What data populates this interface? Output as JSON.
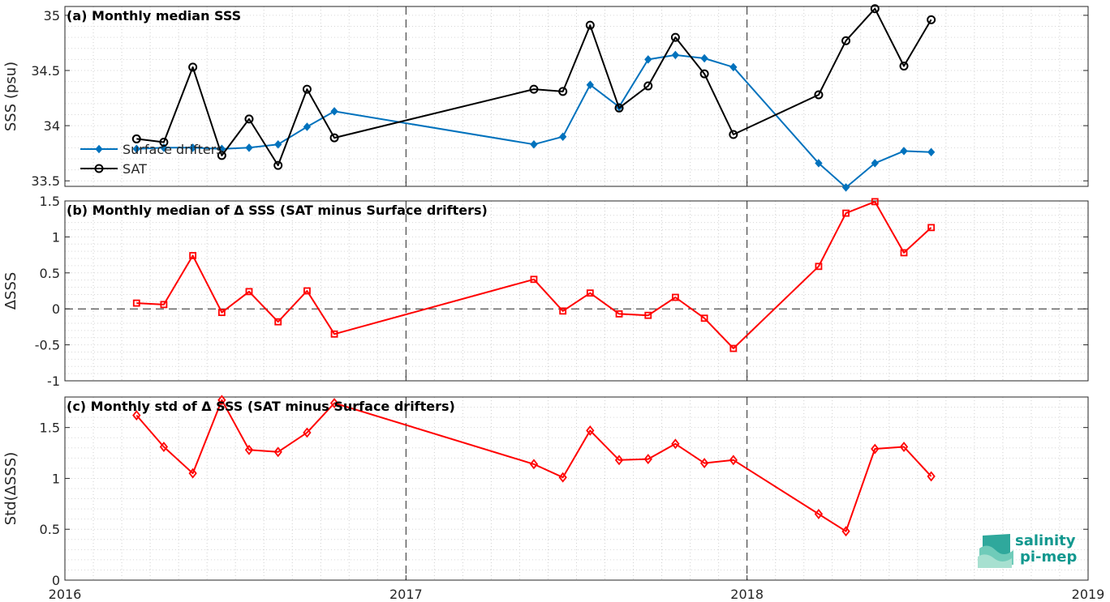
{
  "chart_data": [
    {
      "id": "a",
      "type": "line",
      "title": "(a) Monthly median SSS",
      "ylabel": "SSS (psu)",
      "xlim": [
        2016,
        2019
      ],
      "ylim": [
        33.45,
        35.08
      ],
      "yticks": [
        33.5,
        34,
        34.5,
        35
      ],
      "ytick_labels": [
        "33.5",
        "34",
        "34.5",
        "35"
      ],
      "legend": {
        "position": "left",
        "entries": [
          "Surface drifters",
          "SAT"
        ]
      },
      "series": [
        {
          "name": "Surface drifters",
          "color": "#0072bd",
          "marker": "filled-diamond",
          "x": [
            2016.21,
            2016.29,
            2016.375,
            2016.46,
            2016.54,
            2016.625,
            2016.71,
            2016.79,
            2017.375,
            2017.46,
            2017.54,
            2017.625,
            2017.71,
            2017.79,
            2017.875,
            2017.96,
            2018.21,
            2018.29,
            2018.375,
            2018.46,
            2018.54
          ],
          "values": [
            33.79,
            33.8,
            33.8,
            33.79,
            33.8,
            33.83,
            33.99,
            34.13,
            33.83,
            33.9,
            34.37,
            34.17,
            34.6,
            34.64,
            34.61,
            34.53,
            33.66,
            33.44,
            33.66,
            33.77,
            33.76
          ]
        },
        {
          "name": "SAT",
          "color": "#000000",
          "marker": "open-circle",
          "x": [
            2016.21,
            2016.29,
            2016.375,
            2016.46,
            2016.54,
            2016.625,
            2016.71,
            2016.79,
            2017.375,
            2017.46,
            2017.54,
            2017.625,
            2017.71,
            2017.79,
            2017.875,
            2017.96,
            2018.21,
            2018.29,
            2018.375,
            2018.46,
            2018.54
          ],
          "values": [
            33.88,
            33.85,
            34.53,
            33.73,
            34.06,
            33.64,
            34.33,
            33.89,
            34.33,
            34.31,
            34.91,
            34.16,
            34.36,
            34.8,
            34.47,
            33.92,
            34.28,
            34.77,
            35.06,
            34.54,
            34.96
          ]
        }
      ]
    },
    {
      "id": "b",
      "type": "line",
      "title": "(b) Monthly median of Δ SSS (SAT minus Surface drifters)",
      "ylabel": "ΔSSS",
      "xlim": [
        2016,
        2019
      ],
      "ylim": [
        -1,
        1.5
      ],
      "yticks": [
        -1,
        -0.5,
        0,
        0.5,
        1,
        1.5
      ],
      "ytick_labels": [
        "-1",
        "-0.5",
        "0",
        "0.5",
        "1",
        "1.5"
      ],
      "zero_line": true,
      "series": [
        {
          "color": "#ff0000",
          "marker": "open-square",
          "x": [
            2016.21,
            2016.29,
            2016.375,
            2016.46,
            2016.54,
            2016.625,
            2016.71,
            2016.79,
            2017.375,
            2017.46,
            2017.54,
            2017.625,
            2017.71,
            2017.79,
            2017.875,
            2017.96,
            2018.21,
            2018.29,
            2018.375,
            2018.46,
            2018.54
          ],
          "values": [
            0.08,
            0.06,
            0.74,
            -0.05,
            0.24,
            -0.18,
            0.25,
            -0.35,
            0.41,
            -0.03,
            0.22,
            -0.07,
            -0.09,
            0.16,
            -0.13,
            -0.55,
            0.59,
            1.33,
            1.49,
            0.78,
            1.13
          ]
        }
      ]
    },
    {
      "id": "c",
      "type": "line",
      "title": "(c) Monthly std of Δ SSS (SAT minus Surface drifters)",
      "ylabel": "Std(ΔSSS)",
      "xlim": [
        2016,
        2019
      ],
      "ylim": [
        0,
        1.8
      ],
      "yticks": [
        0,
        0.5,
        1,
        1.5
      ],
      "ytick_labels": [
        "0",
        "0.5",
        "1",
        "1.5"
      ],
      "xticks": [
        2016,
        2017,
        2018,
        2019
      ],
      "xtick_labels": [
        "2016",
        "2017",
        "2018",
        "2019"
      ],
      "series": [
        {
          "color": "#ff0000",
          "marker": "open-diamond",
          "x": [
            2016.21,
            2016.29,
            2016.375,
            2016.46,
            2016.54,
            2016.625,
            2016.71,
            2016.79,
            2017.375,
            2017.46,
            2017.54,
            2017.625,
            2017.71,
            2017.79,
            2017.875,
            2017.96,
            2018.21,
            2018.29,
            2018.375,
            2018.46,
            2018.54
          ],
          "values": [
            1.62,
            1.31,
            1.05,
            1.77,
            1.28,
            1.26,
            1.45,
            1.74,
            1.14,
            1.01,
            1.47,
            1.18,
            1.19,
            1.34,
            1.15,
            1.18,
            0.65,
            0.48,
            1.29,
            1.31,
            1.02
          ]
        }
      ]
    }
  ],
  "grid": true,
  "year_dividers": [
    2017,
    2018
  ],
  "logo": {
    "line1": "salinity",
    "line2": "pi-mep",
    "color": "#12988f"
  }
}
